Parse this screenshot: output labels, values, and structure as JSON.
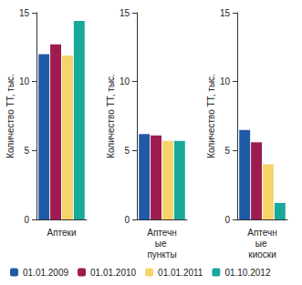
{
  "chart_data": [
    {
      "type": "bar",
      "categories": [
        "Аптеки"
      ],
      "ylabel": "Количество ТТ, тыс.",
      "series": [
        {
          "name": "01.01.2009",
          "color": "#1f5aa6",
          "values": [
            12.0
          ]
        },
        {
          "name": "01.01.2010",
          "color": "#9e1b4f",
          "values": [
            12.7
          ]
        },
        {
          "name": "01.01.2011",
          "color": "#f6d46a",
          "values": [
            11.9
          ]
        },
        {
          "name": "01.10.2012",
          "color": "#19a99b",
          "values": [
            14.4
          ]
        }
      ],
      "ylim": [
        0,
        15
      ],
      "yticks": [
        0,
        5,
        10,
        15
      ],
      "grid": false,
      "legend": "bottom"
    },
    {
      "type": "bar",
      "categories": [
        "Аптечные пункты"
      ],
      "ylabel": "Количество ТТ, тыс.",
      "series": [
        {
          "name": "01.01.2009",
          "color": "#1f5aa6",
          "values": [
            6.2
          ]
        },
        {
          "name": "01.01.2010",
          "color": "#9e1b4f",
          "values": [
            6.1
          ]
        },
        {
          "name": "01.01.2011",
          "color": "#f6d46a",
          "values": [
            5.7
          ]
        },
        {
          "name": "01.10.2012",
          "color": "#19a99b",
          "values": [
            5.7
          ]
        }
      ],
      "ylim": [
        0,
        15
      ],
      "yticks": [
        0,
        5,
        10,
        15
      ],
      "grid": false,
      "legend": "bottom"
    },
    {
      "type": "bar",
      "categories": [
        "Аптечные киоски"
      ],
      "ylabel": "Количество ТТ, тыс.",
      "series": [
        {
          "name": "01.01.2009",
          "color": "#1f5aa6",
          "values": [
            6.5
          ]
        },
        {
          "name": "01.01.2010",
          "color": "#9e1b4f",
          "values": [
            5.6
          ]
        },
        {
          "name": "01.01.2011",
          "color": "#f6d46a",
          "values": [
            4.0
          ]
        },
        {
          "name": "01.10.2012",
          "color": "#19a99b",
          "values": [
            1.2
          ]
        }
      ],
      "ylim": [
        0,
        15
      ],
      "yticks": [
        0,
        5,
        10,
        15
      ],
      "grid": false,
      "legend": "bottom"
    }
  ]
}
